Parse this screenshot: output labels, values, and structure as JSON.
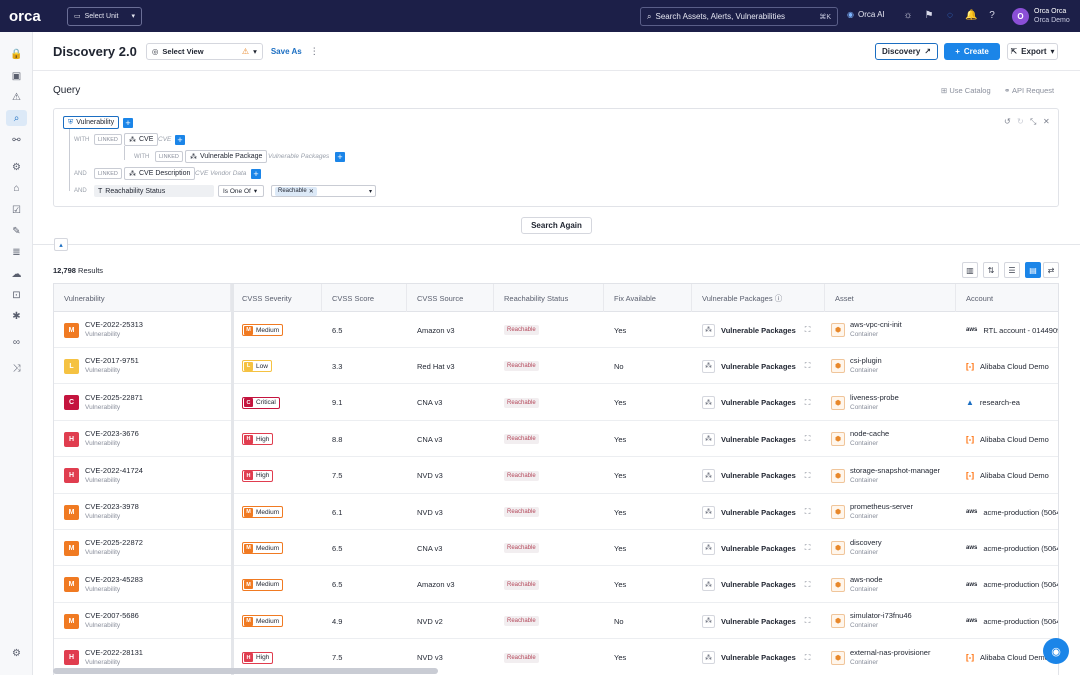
{
  "brand": {
    "logo": "orca"
  },
  "topbar": {
    "select_unit": "Select Unit",
    "search_placeholder": "Search Assets, Alerts, Vulnerabilities",
    "search_shortcut": "⌘K",
    "ai_label": "Orca AI",
    "user_name": "Orca Orca",
    "user_org": "Orca Demo",
    "avatar_initial": "O"
  },
  "header": {
    "title": "Discovery 2.0",
    "select_view": "Select View",
    "save_as": "Save As",
    "discovery_button": "Discovery",
    "create_button": "Create",
    "export_button": "Export"
  },
  "query": {
    "label": "Query",
    "use_catalog": "Use Catalog",
    "api_request": "API Request",
    "root": "Vulnerability",
    "with1": "WITH",
    "linked1": "LINKED",
    "cve": "CVE",
    "cve_hint": "CVE",
    "with2": "WITH",
    "linked2": "LINKED",
    "vuln_package": "Vulnerable Package",
    "vuln_package_hint": "Vulnerable Packages",
    "and1": "AND",
    "linked3": "LINKED",
    "cve_description": "CVE Description",
    "cve_description_hint": "CVE Vendor Data",
    "and2": "AND",
    "field": "Reachability Status",
    "operator": "Is One Of",
    "value": "Reachable",
    "search_again": "Search Again"
  },
  "results": {
    "count": "12,798",
    "label": "Results"
  },
  "table": {
    "columns": [
      "Vulnerability",
      "CVSS Severity",
      "CVSS Score",
      "CVSS Source",
      "Reachability Status",
      "Fix Available",
      "Vulnerable Packages",
      "Asset",
      "Account"
    ],
    "rows": [
      {
        "sev": "M",
        "sev_color": "#f07a22",
        "cve": "CVE-2022-25313",
        "type": "Vulnerability",
        "severity": "Medium",
        "score": "6.5",
        "source": "Amazon v3",
        "reach": "Reachable",
        "fix": "Yes",
        "packages": "Vulnerable Packages",
        "asset": "aws-vpc-cni-init",
        "asset_type": "Container",
        "acct_icon": "aws",
        "account": "RTL account - 0144909"
      },
      {
        "sev": "L",
        "sev_color": "#f5c242",
        "cve": "CVE-2017-9751",
        "type": "Vulnerability",
        "severity": "Low",
        "score": "3.3",
        "source": "Red Hat v3",
        "reach": "Reachable",
        "fix": "No",
        "packages": "Vulnerable Packages",
        "asset": "csi-plugin",
        "asset_type": "Container",
        "acct_icon": "ali",
        "account": "Alibaba Cloud Demo"
      },
      {
        "sev": "C",
        "sev_color": "#c4143e",
        "cve": "CVE-2025-22871",
        "type": "Vulnerability",
        "severity": "Critical",
        "score": "9.1",
        "source": "CNA v3",
        "reach": "Reachable",
        "fix": "Yes",
        "packages": "Vulnerable Packages",
        "asset": "liveness-probe",
        "asset_type": "Container",
        "acct_icon": "az",
        "account": "research-ea"
      },
      {
        "sev": "H",
        "sev_color": "#e03d4f",
        "cve": "CVE-2023-3676",
        "type": "Vulnerability",
        "severity": "High",
        "score": "8.8",
        "source": "CNA v3",
        "reach": "Reachable",
        "fix": "Yes",
        "packages": "Vulnerable Packages",
        "asset": "node-cache",
        "asset_type": "Container",
        "acct_icon": "ali",
        "account": "Alibaba Cloud Demo"
      },
      {
        "sev": "H",
        "sev_color": "#e03d4f",
        "cve": "CVE-2022-41724",
        "type": "Vulnerability",
        "severity": "High",
        "score": "7.5",
        "source": "NVD v3",
        "reach": "Reachable",
        "fix": "Yes",
        "packages": "Vulnerable Packages",
        "asset": "storage-snapshot-manager",
        "asset_type": "Container",
        "acct_icon": "ali",
        "account": "Alibaba Cloud Demo"
      },
      {
        "sev": "M",
        "sev_color": "#f07a22",
        "cve": "CVE-2023-3978",
        "type": "Vulnerability",
        "severity": "Medium",
        "score": "6.1",
        "source": "NVD v3",
        "reach": "Reachable",
        "fix": "Yes",
        "packages": "Vulnerable Packages",
        "asset": "prometheus-server",
        "asset_type": "Container",
        "acct_icon": "aws",
        "account": "acme-production (5064"
      },
      {
        "sev": "M",
        "sev_color": "#f07a22",
        "cve": "CVE-2025-22872",
        "type": "Vulnerability",
        "severity": "Medium",
        "score": "6.5",
        "source": "CNA v3",
        "reach": "Reachable",
        "fix": "Yes",
        "packages": "Vulnerable Packages",
        "asset": "discovery",
        "asset_type": "Container",
        "acct_icon": "aws",
        "account": "acme-production (5064"
      },
      {
        "sev": "M",
        "sev_color": "#f07a22",
        "cve": "CVE-2023-45283",
        "type": "Vulnerability",
        "severity": "Medium",
        "score": "6.5",
        "source": "Amazon v3",
        "reach": "Reachable",
        "fix": "Yes",
        "packages": "Vulnerable Packages",
        "asset": "aws-node",
        "asset_type": "Container",
        "acct_icon": "aws",
        "account": "acme-production (5064"
      },
      {
        "sev": "M",
        "sev_color": "#f07a22",
        "cve": "CVE-2007-5686",
        "type": "Vulnerability",
        "severity": "Medium",
        "score": "4.9",
        "source": "NVD v2",
        "reach": "Reachable",
        "fix": "No",
        "packages": "Vulnerable Packages",
        "asset": "simulator-i73fnu46",
        "asset_type": "Container",
        "acct_icon": "aws",
        "account": "acme-production (5064"
      },
      {
        "sev": "H",
        "sev_color": "#e03d4f",
        "cve": "CVE-2022-28131",
        "type": "Vulnerability",
        "severity": "High",
        "score": "7.5",
        "source": "NVD v3",
        "reach": "Reachable",
        "fix": "Yes",
        "packages": "Vulnerable Packages",
        "asset": "external-nas-provisioner",
        "asset_type": "Container",
        "acct_icon": "ali",
        "account": "Alibaba Cloud Demo"
      }
    ]
  }
}
